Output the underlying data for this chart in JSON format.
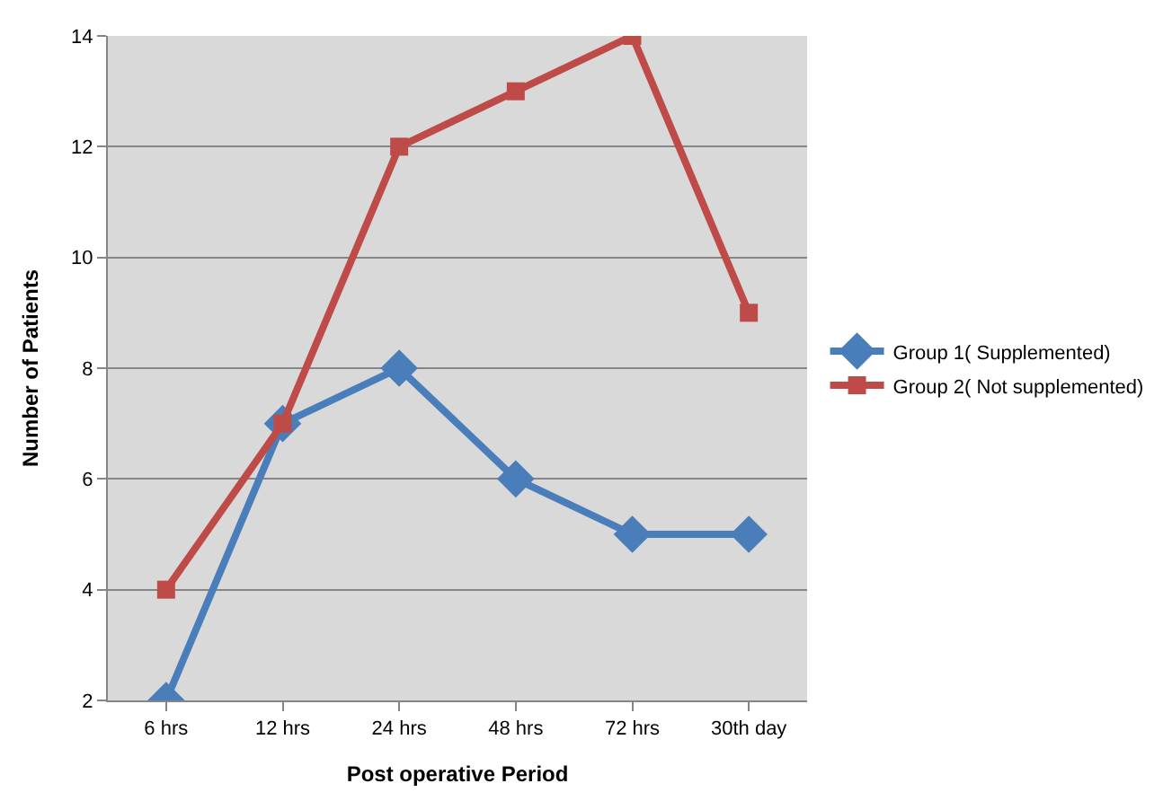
{
  "chart_data": {
    "type": "line",
    "xlabel": "Post operative Period",
    "ylabel": "Number of Patients",
    "categories": [
      "6 hrs",
      "12 hrs",
      "24 hrs",
      "48 hrs",
      "72 hrs",
      "30th day"
    ],
    "series": [
      {
        "name": "Group 1( Supplemented)",
        "color": "#4a7ebb",
        "values": [
          2,
          7,
          8,
          6,
          5,
          5
        ],
        "marker": "diamond"
      },
      {
        "name": "Group 2( Not supplemented)",
        "color": "#be4b48",
        "values": [
          4,
          7,
          12,
          13,
          14,
          9
        ],
        "marker": "square"
      }
    ],
    "ylim": [
      2,
      14
    ],
    "yticks": [
      2,
      4,
      6,
      8,
      10,
      12,
      14
    ],
    "grid": "y",
    "legend": "right"
  }
}
